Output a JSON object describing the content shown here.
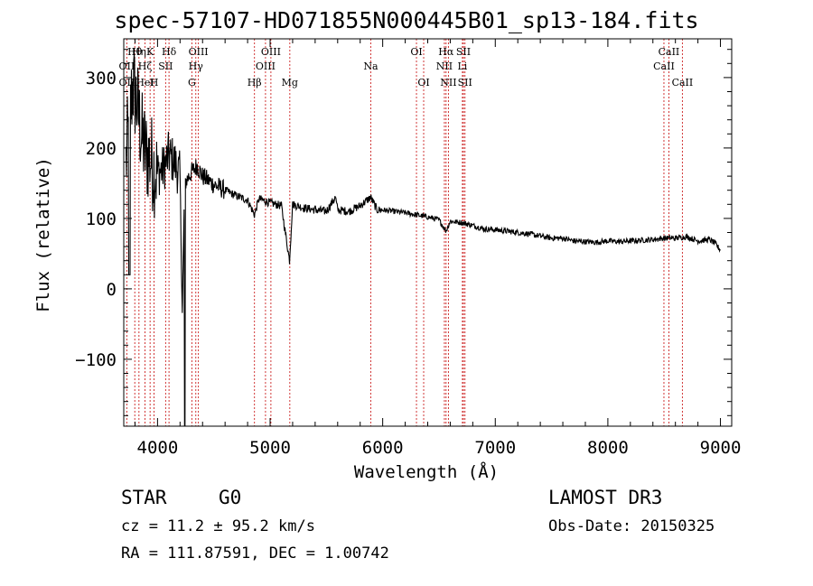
{
  "chart_data": {
    "type": "line",
    "title": "spec-57107-HD071855N000445B01_sp13-184.fits",
    "xlabel": "Wavelength (Å)",
    "ylabel": "Flux (relative)",
    "xlim": [
      3700,
      9100
    ],
    "ylim": [
      -195,
      355
    ],
    "xticks": [
      4000,
      5000,
      6000,
      7000,
      8000,
      9000
    ],
    "xtick_labels": [
      "4000",
      "5000",
      "6000",
      "7000",
      "8000",
      "9000"
    ],
    "yticks": [
      -100,
      0,
      100,
      200,
      300
    ],
    "ytick_labels": [
      "−100",
      "0",
      "100",
      "200",
      "300"
    ],
    "grid": false,
    "series": [
      {
        "name": "spectrum",
        "x": [
          3720,
          3750,
          3780,
          3820,
          3860,
          3900,
          3940,
          3970,
          4000,
          4050,
          4100,
          4150,
          4200,
          4220,
          4240,
          4300,
          4350,
          4400,
          4500,
          4600,
          4700,
          4800,
          4861,
          4900,
          5000,
          5100,
          5172,
          5200,
          5300,
          5400,
          5500,
          5580,
          5600,
          5700,
          5800,
          5893,
          5950,
          6000,
          6100,
          6200,
          6300,
          6400,
          6500,
          6563,
          6600,
          6700,
          6800,
          6900,
          7000,
          7100,
          7200,
          7300,
          7400,
          7500,
          7600,
          7700,
          7800,
          7900,
          8000,
          8100,
          8200,
          8300,
          8400,
          8500,
          8600,
          8700,
          8800,
          8900,
          8950,
          9000
        ],
        "y": [
          180,
          240,
          290,
          260,
          215,
          190,
          185,
          170,
          165,
          170,
          190,
          180,
          160,
          -35,
          150,
          165,
          175,
          160,
          148,
          140,
          132,
          126,
          105,
          128,
          122,
          118,
          40,
          120,
          115,
          112,
          110,
          130,
          112,
          110,
          118,
          130,
          112,
          112,
          110,
          108,
          105,
          102,
          98,
          82,
          96,
          94,
          90,
          85,
          84,
          82,
          80,
          78,
          75,
          72,
          72,
          68,
          67,
          66,
          68,
          67,
          68,
          69,
          70,
          72,
          72,
          74,
          68,
          70,
          65,
          55
        ]
      }
    ],
    "lines": [
      {
        "label": "Hθ",
        "x": 3798,
        "row": 0
      },
      {
        "label": "OII",
        "x": 3727,
        "row": 1
      },
      {
        "label": "OII",
        "x": 3727,
        "row": 2
      },
      {
        "label": "Hη",
        "x": 3835,
        "row": 0
      },
      {
        "label": "Hζ",
        "x": 3889,
        "row": 1
      },
      {
        "label": "HeI",
        "x": 3889,
        "row": 2
      },
      {
        "label": "K",
        "x": 3934,
        "row": 0
      },
      {
        "label": "H",
        "x": 3969,
        "row": 2
      },
      {
        "label": "SII",
        "x": 4072,
        "row": 1
      },
      {
        "label": "Hδ",
        "x": 4102,
        "row": 0
      },
      {
        "label": "OIII",
        "x": 4363,
        "row": 0
      },
      {
        "label": "Hγ",
        "x": 4340,
        "row": 1
      },
      {
        "label": "G",
        "x": 4305,
        "row": 2
      },
      {
        "label": "Hβ",
        "x": 4861,
        "row": 2
      },
      {
        "label": "OIII",
        "x": 4959,
        "row": 1
      },
      {
        "label": "OIII",
        "x": 5007,
        "row": 0
      },
      {
        "label": "Mg",
        "x": 5175,
        "row": 2
      },
      {
        "label": "Na",
        "x": 5894,
        "row": 1
      },
      {
        "label": "OI",
        "x": 6300,
        "row": 0
      },
      {
        "label": "OI",
        "x": 6364,
        "row": 2
      },
      {
        "label": "Hα",
        "x": 6563,
        "row": 0
      },
      {
        "label": "NII",
        "x": 6548,
        "row": 1
      },
      {
        "label": "NII",
        "x": 6584,
        "row": 2
      },
      {
        "label": "SII",
        "x": 6717,
        "row": 0
      },
      {
        "label": "Li",
        "x": 6708,
        "row": 1
      },
      {
        "label": "SII",
        "x": 6731,
        "row": 2
      },
      {
        "label": "CaII",
        "x": 8542,
        "row": 0
      },
      {
        "label": "CaII",
        "x": 8498,
        "row": 1
      },
      {
        "label": "CaII",
        "x": 8662,
        "row": 2
      }
    ]
  },
  "info": {
    "object_class": "STAR",
    "subclass": "G0",
    "survey": "LAMOST DR3",
    "velocity": "cz = 11.2 ± 95.2 km/s",
    "obs_date": "Obs-Date: 20150325",
    "coordinates": "RA = 111.87591, DEC =    1.00742"
  }
}
